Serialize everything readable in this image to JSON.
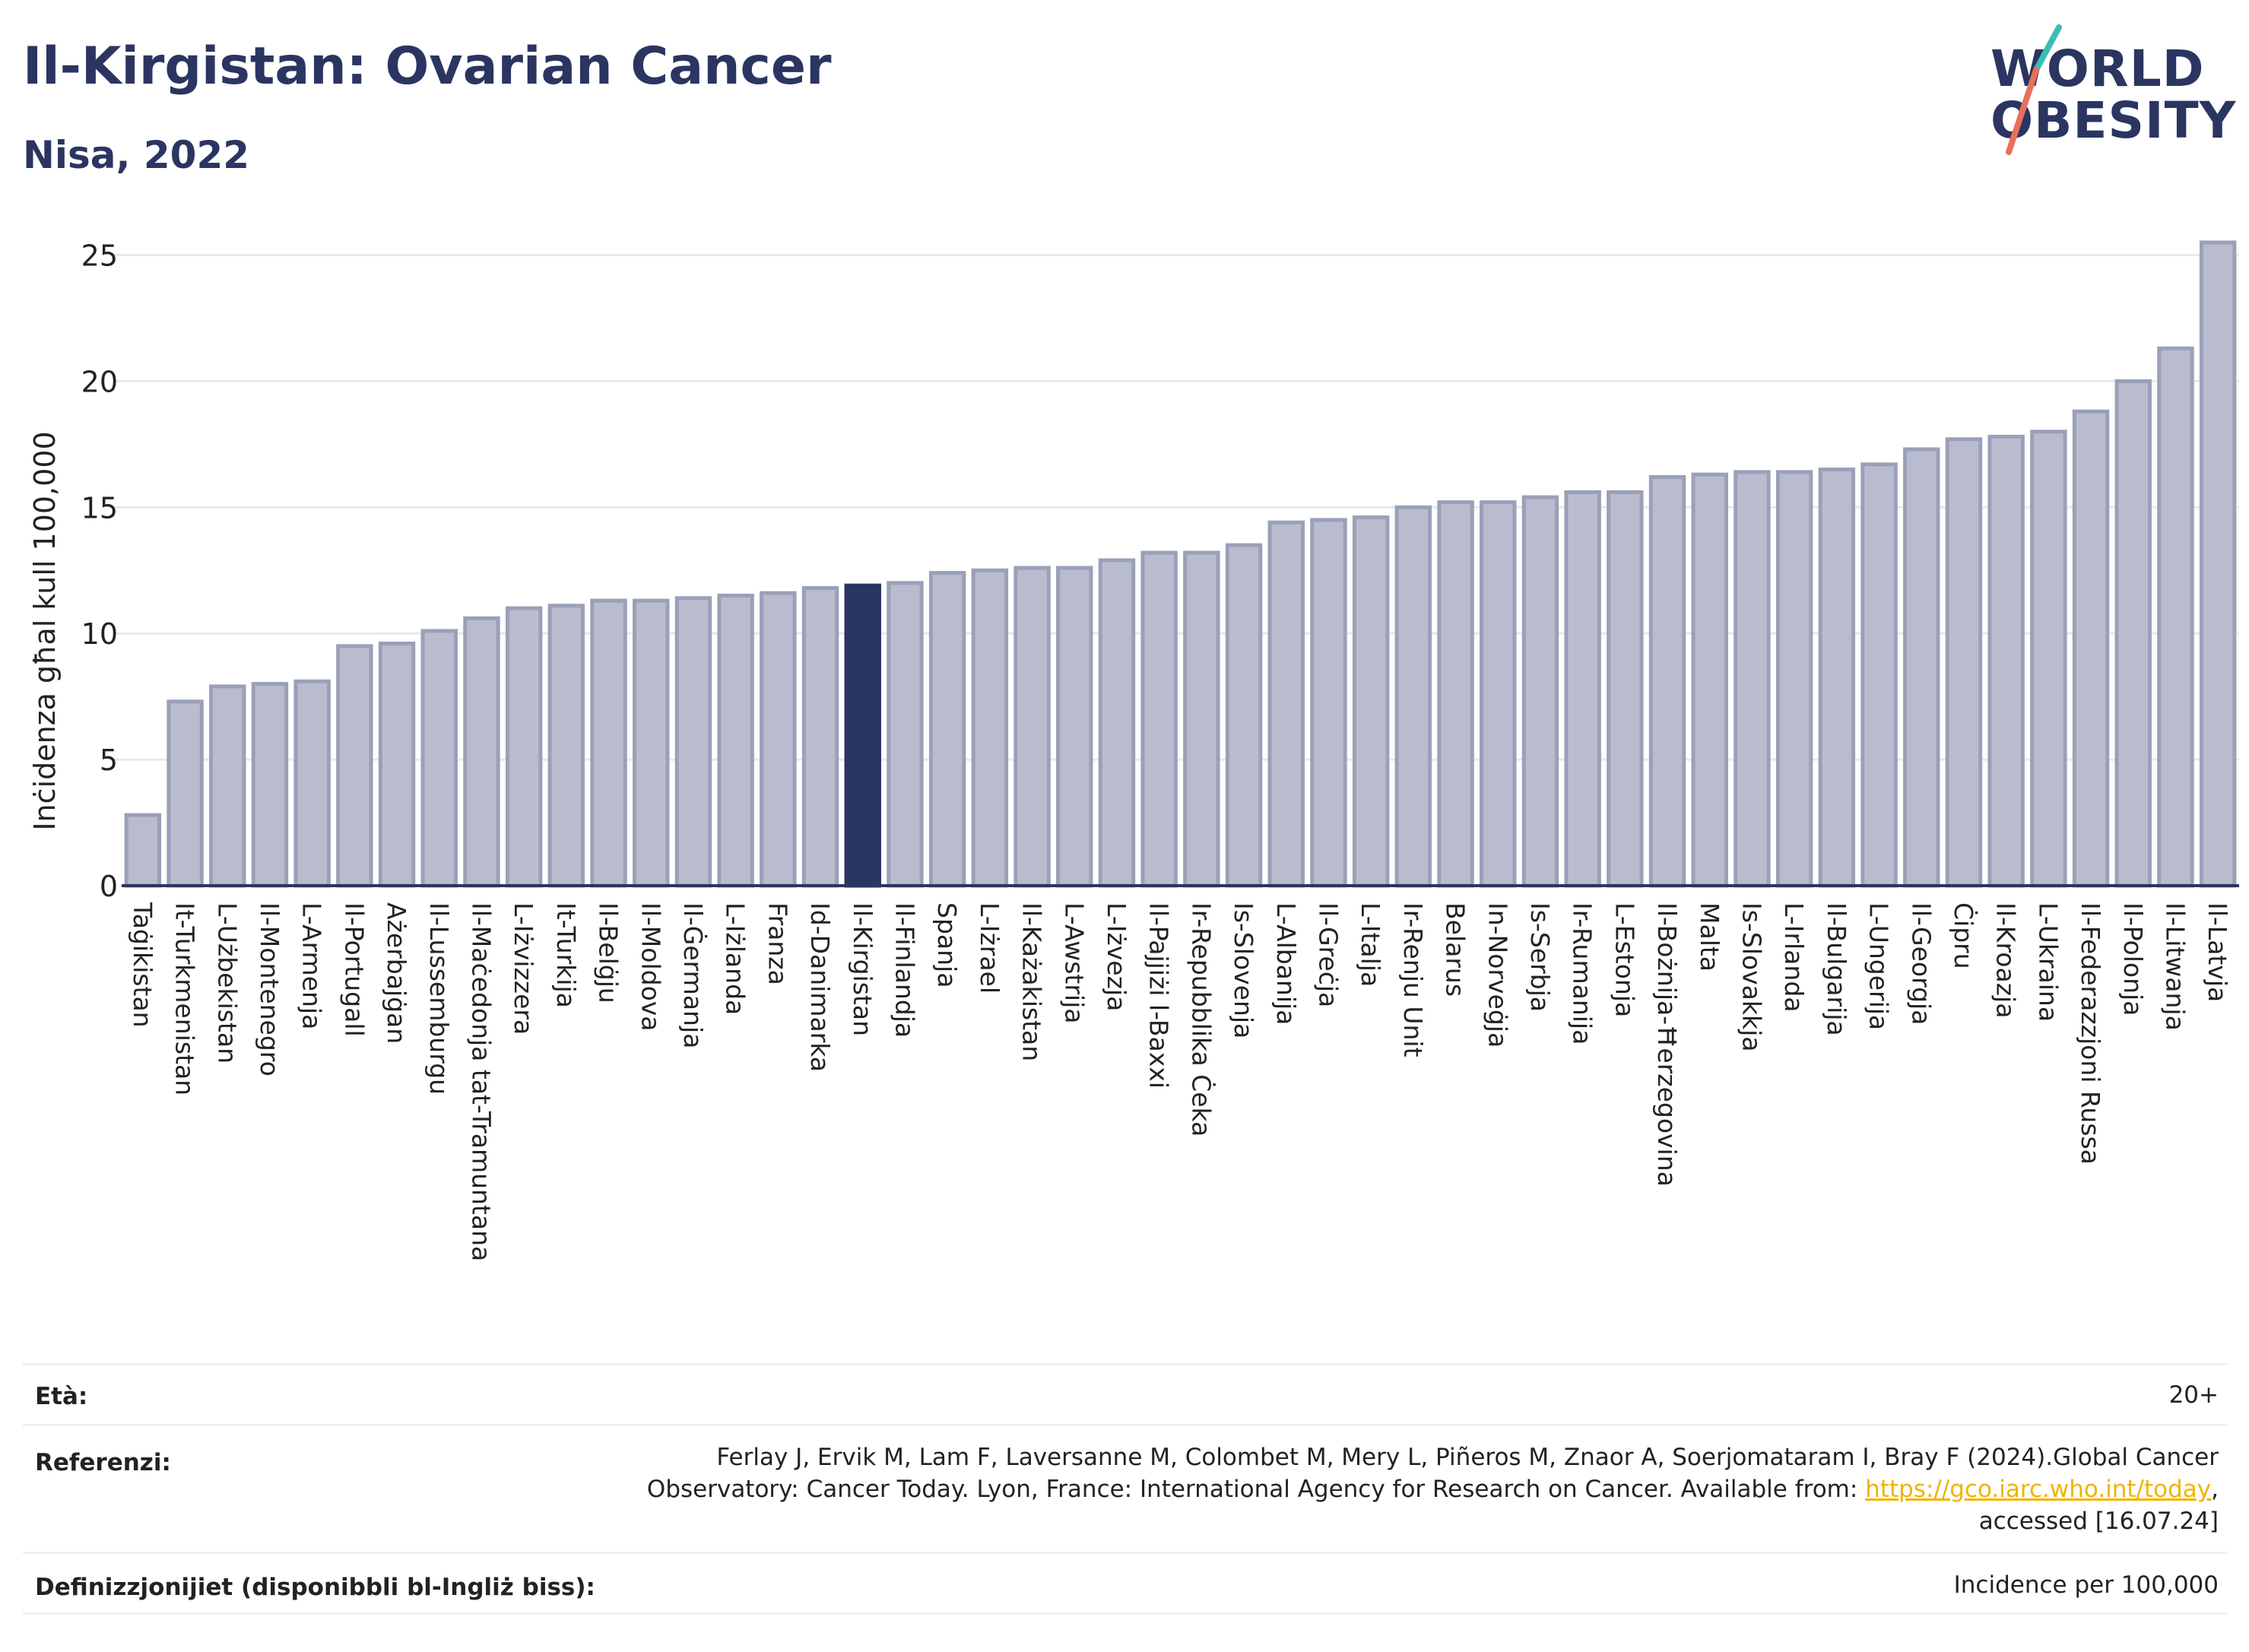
{
  "header": {
    "title": "Il-Kirgistan: Ovarian Cancer",
    "subtitle": "Nisa, 2022"
  },
  "logo": {
    "line1": "WORLD",
    "line2": "OBESITY",
    "colors": {
      "text": "#2b3561",
      "slash_teal": "#3cbcb6",
      "slash_coral": "#e8705a"
    }
  },
  "chart_data": {
    "type": "bar",
    "title": "Il-Kirgistan: Ovarian Cancer",
    "subtitle": "Nisa, 2022",
    "ylabel": "Inċidenza għal kull 100,000",
    "xlabel": "",
    "ylim": [
      0,
      26
    ],
    "yticks": [
      0,
      5,
      10,
      15,
      20,
      25
    ],
    "grid": true,
    "highlight": "Il-Kirgistan",
    "colors": {
      "bar": "#b9bcce",
      "bar_edge": "#9aa0b8",
      "highlight": "#2b3561"
    },
    "categories": [
      "Taġikistan",
      "It-Turkmenistan",
      "L-Użbekistan",
      "Il-Montenegro",
      "L-Armenja",
      "Il-Portugall",
      "Ażerbajġan",
      "Il-Lussemburgu",
      "Il-Maċedonja tat-Tramuntana",
      "L-Iżvizzera",
      "It-Turkija",
      "Il-Belġju",
      "Il-Moldova",
      "Il-Ġermanja",
      "L-Iżlanda",
      "Franza",
      "Id-Danimarka",
      "Il-Kirgistan",
      "Il-Finlandja",
      "Spanja",
      "L-Iżrael",
      "Il-Każakistan",
      "L-Awstrija",
      "L-Iżvezja",
      "Il-Pajjiżi l-Baxxi",
      "Ir-Repubblika Ċeka",
      "Is-Slovenja",
      "L-Albanija",
      "Il-Greċja",
      "L-Italja",
      "Ir-Renju Unit",
      "Belarus",
      "In-Norveġja",
      "Is-Serbja",
      "Ir-Rumanija",
      "L-Estonja",
      "Il-Bożnija-Ħerzegovina",
      "Malta",
      "Is-Slovakkja",
      "L-Irlanda",
      "Il-Bulgarija",
      "L-Ungerija",
      "Il-Georgja",
      "Ċipru",
      "Il-Kroazja",
      "L-Ukraina",
      "Il-Federazzjoni Russa",
      "Il-Polonja",
      "Il-Litwanja",
      "Il-Latvja"
    ],
    "values": [
      2.8,
      7.3,
      7.9,
      8.0,
      8.1,
      9.5,
      9.6,
      10.1,
      10.6,
      11.0,
      11.1,
      11.3,
      11.3,
      11.4,
      11.5,
      11.6,
      11.8,
      11.9,
      12.0,
      12.4,
      12.5,
      12.6,
      12.6,
      12.9,
      13.2,
      13.2,
      13.5,
      14.4,
      14.5,
      14.6,
      15.0,
      15.2,
      15.2,
      15.4,
      15.6,
      15.6,
      16.2,
      16.3,
      16.4,
      16.4,
      16.5,
      16.7,
      17.3,
      17.7,
      17.8,
      18.0,
      18.8,
      20.0,
      21.3,
      25.5
    ]
  },
  "info": {
    "age_label": "Età:",
    "age_value": "20+",
    "ref_label": "Referenzi:",
    "ref_line1": "Ferlay J, Ervik M, Lam F, Laversanne M, Colombet M, Mery L, Piñeros M, Znaor A, Soerjomataram I, Bray F (2024).Global Cancer",
    "ref_line2_pre": "Observatory: Cancer Today. Lyon, France: International Agency for Research on Cancer. Available from: ",
    "ref_link": "https://gco.iarc.who.int/today",
    "ref_line2_post": ",",
    "ref_line3": "accessed [16.07.24]",
    "def_label": "Definizzjonijiet (disponibbli bl-Ingliż biss):",
    "def_value": "Incidence per 100,000"
  }
}
